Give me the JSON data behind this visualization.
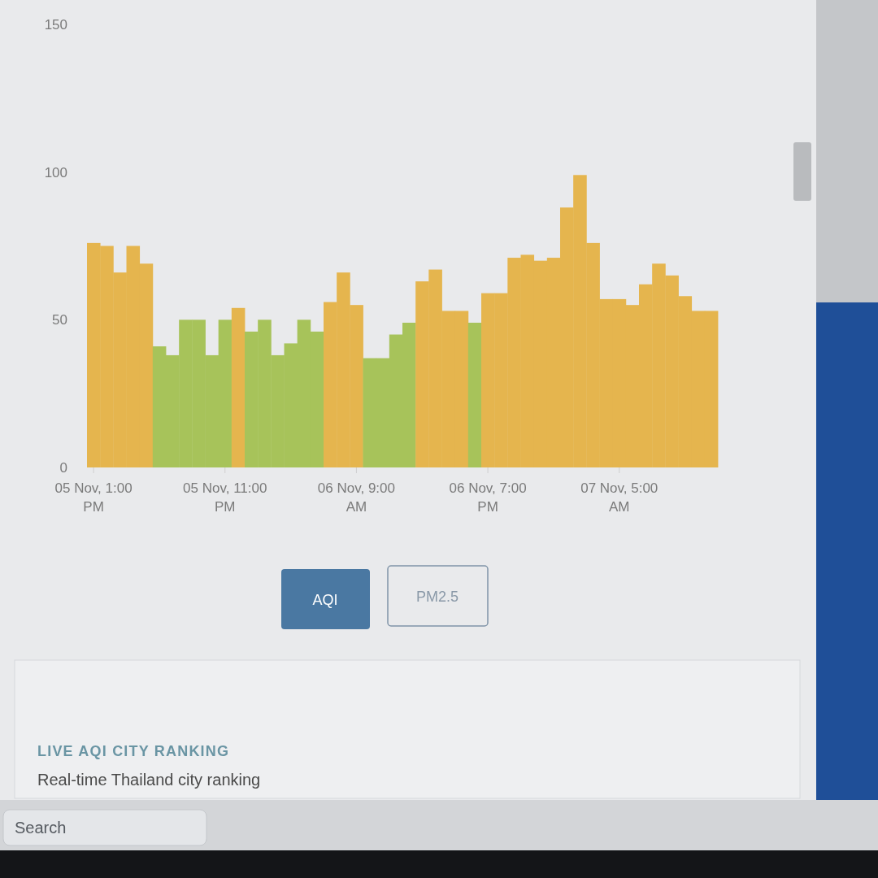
{
  "chart_data": {
    "type": "bar",
    "categories": [
      "05 Nov, 1:00 PM",
      null,
      null,
      null,
      null,
      null,
      null,
      null,
      null,
      null,
      "05 Nov, 11:00 PM",
      null,
      null,
      null,
      null,
      null,
      null,
      null,
      null,
      null,
      "06 Nov, 9:00 AM",
      null,
      null,
      null,
      null,
      null,
      null,
      null,
      null,
      null,
      "06 Nov, 7:00 PM",
      null,
      null,
      null,
      null,
      null,
      null,
      null,
      null,
      null,
      "07 Nov, 5:00 AM",
      null,
      null,
      null,
      null,
      null,
      null,
      null
    ],
    "values": [
      76,
      75,
      66,
      75,
      69,
      41,
      38,
      50,
      50,
      38,
      50,
      54,
      46,
      50,
      38,
      42,
      50,
      46,
      56,
      66,
      55,
      37,
      37,
      45,
      49,
      63,
      67,
      53,
      53,
      49,
      59,
      59,
      71,
      72,
      70,
      71,
      88,
      99,
      76,
      57,
      57,
      55,
      62,
      69,
      65,
      58,
      53,
      53
    ],
    "colors": [
      "#e5b54e",
      "#e5b54e",
      "#e5b54e",
      "#e5b54e",
      "#e5b54e",
      "#a7c35a",
      "#a7c35a",
      "#a7c35a",
      "#a7c35a",
      "#a7c35a",
      "#a7c35a",
      "#e5b54e",
      "#a7c35a",
      "#a7c35a",
      "#a7c35a",
      "#a7c35a",
      "#a7c35a",
      "#a7c35a",
      "#e5b54e",
      "#e5b54e",
      "#e5b54e",
      "#a7c35a",
      "#a7c35a",
      "#a7c35a",
      "#a7c35a",
      "#e5b54e",
      "#e5b54e",
      "#e5b54e",
      "#e5b54e",
      "#a7c35a",
      "#e5b54e",
      "#e5b54e",
      "#e5b54e",
      "#e5b54e",
      "#e5b54e",
      "#e5b54e",
      "#e5b54e",
      "#e5b54e",
      "#e5b54e",
      "#e5b54e",
      "#e5b54e",
      "#e5b54e",
      "#e5b54e",
      "#e5b54e",
      "#e5b54e",
      "#e5b54e",
      "#e5b54e",
      "#e5b54e"
    ],
    "ylim": [
      0,
      150
    ],
    "yticks": [
      0,
      50,
      100,
      150
    ],
    "annotations": [
      "AQI",
      "PM2.5",
      "LIVE AQI CITY RANKING",
      "Real-time Thailand city ranking",
      "Search"
    ]
  }
}
